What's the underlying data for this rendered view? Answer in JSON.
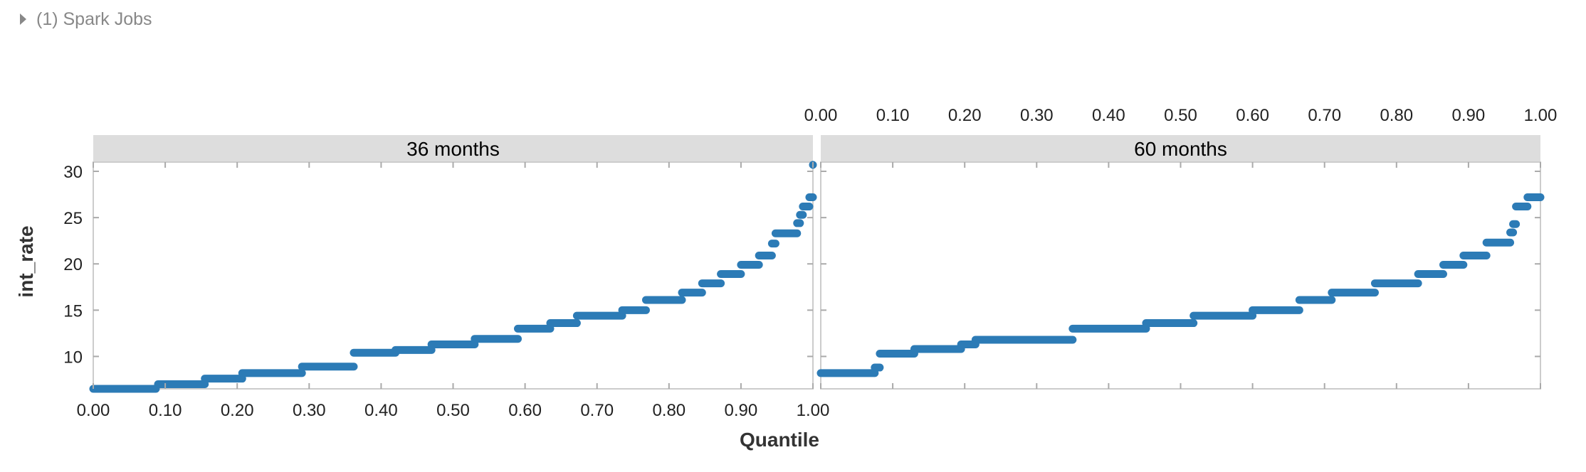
{
  "header": {
    "spark_jobs_label": "(1) Spark Jobs"
  },
  "chart_data": {
    "type": "scatter",
    "xlabel": "Quantile",
    "ylabel": "int_rate",
    "xlim": [
      0,
      1
    ],
    "ylim": [
      6.5,
      31
    ],
    "x_ticks": [
      "0.00",
      "0.10",
      "0.20",
      "0.30",
      "0.40",
      "0.50",
      "0.60",
      "0.70",
      "0.80",
      "0.90",
      "1.00"
    ],
    "y_ticks": [
      "10",
      "15",
      "20",
      "25",
      "30"
    ],
    "color": "#2c7bb6",
    "facet_header_color": "#dddddd",
    "facets": [
      {
        "label": "36 months",
        "steps": [
          {
            "x0": 0.0,
            "x1": 0.087,
            "y": 6.5
          },
          {
            "x0": 0.09,
            "x1": 0.155,
            "y": 7.0
          },
          {
            "x0": 0.155,
            "x1": 0.207,
            "y": 7.6
          },
          {
            "x0": 0.207,
            "x1": 0.29,
            "y": 8.2
          },
          {
            "x0": 0.29,
            "x1": 0.362,
            "y": 8.9
          },
          {
            "x0": 0.362,
            "x1": 0.42,
            "y": 10.4
          },
          {
            "x0": 0.42,
            "x1": 0.47,
            "y": 10.7
          },
          {
            "x0": 0.47,
            "x1": 0.53,
            "y": 11.3
          },
          {
            "x0": 0.53,
            "x1": 0.59,
            "y": 11.9
          },
          {
            "x0": 0.59,
            "x1": 0.635,
            "y": 13.0
          },
          {
            "x0": 0.635,
            "x1": 0.672,
            "y": 13.6
          },
          {
            "x0": 0.672,
            "x1": 0.735,
            "y": 14.4
          },
          {
            "x0": 0.735,
            "x1": 0.768,
            "y": 15.0
          },
          {
            "x0": 0.768,
            "x1": 0.818,
            "y": 16.1
          },
          {
            "x0": 0.818,
            "x1": 0.846,
            "y": 16.9
          },
          {
            "x0": 0.846,
            "x1": 0.872,
            "y": 17.9
          },
          {
            "x0": 0.872,
            "x1": 0.9,
            "y": 18.9
          },
          {
            "x0": 0.9,
            "x1": 0.925,
            "y": 19.9
          },
          {
            "x0": 0.925,
            "x1": 0.943,
            "y": 20.9
          },
          {
            "x0": 0.943,
            "x1": 0.948,
            "y": 22.2
          },
          {
            "x0": 0.948,
            "x1": 0.978,
            "y": 23.3
          },
          {
            "x0": 0.978,
            "x1": 0.982,
            "y": 24.4
          },
          {
            "x0": 0.982,
            "x1": 0.986,
            "y": 25.3
          },
          {
            "x0": 0.986,
            "x1": 0.995,
            "y": 26.2
          },
          {
            "x0": 0.995,
            "x1": 1.0,
            "y": 27.2
          },
          {
            "x0": 1.0,
            "x1": 1.0,
            "y": 30.7
          }
        ]
      },
      {
        "label": "60 months",
        "steps": [
          {
            "x0": 0.0,
            "x1": 0.075,
            "y": 8.2
          },
          {
            "x0": 0.075,
            "x1": 0.082,
            "y": 8.8
          },
          {
            "x0": 0.082,
            "x1": 0.13,
            "y": 10.3
          },
          {
            "x0": 0.13,
            "x1": 0.195,
            "y": 10.8
          },
          {
            "x0": 0.195,
            "x1": 0.215,
            "y": 11.3
          },
          {
            "x0": 0.215,
            "x1": 0.35,
            "y": 11.8
          },
          {
            "x0": 0.35,
            "x1": 0.452,
            "y": 13.0
          },
          {
            "x0": 0.452,
            "x1": 0.518,
            "y": 13.6
          },
          {
            "x0": 0.518,
            "x1": 0.6,
            "y": 14.4
          },
          {
            "x0": 0.6,
            "x1": 0.665,
            "y": 15.0
          },
          {
            "x0": 0.665,
            "x1": 0.71,
            "y": 16.1
          },
          {
            "x0": 0.71,
            "x1": 0.77,
            "y": 16.9
          },
          {
            "x0": 0.77,
            "x1": 0.83,
            "y": 17.9
          },
          {
            "x0": 0.83,
            "x1": 0.865,
            "y": 18.9
          },
          {
            "x0": 0.865,
            "x1": 0.893,
            "y": 19.9
          },
          {
            "x0": 0.893,
            "x1": 0.925,
            "y": 20.9
          },
          {
            "x0": 0.925,
            "x1": 0.958,
            "y": 22.3
          },
          {
            "x0": 0.958,
            "x1": 0.962,
            "y": 23.4
          },
          {
            "x0": 0.962,
            "x1": 0.966,
            "y": 24.3
          },
          {
            "x0": 0.966,
            "x1": 0.982,
            "y": 26.2
          },
          {
            "x0": 0.982,
            "x1": 1.0,
            "y": 27.2
          }
        ]
      }
    ]
  }
}
